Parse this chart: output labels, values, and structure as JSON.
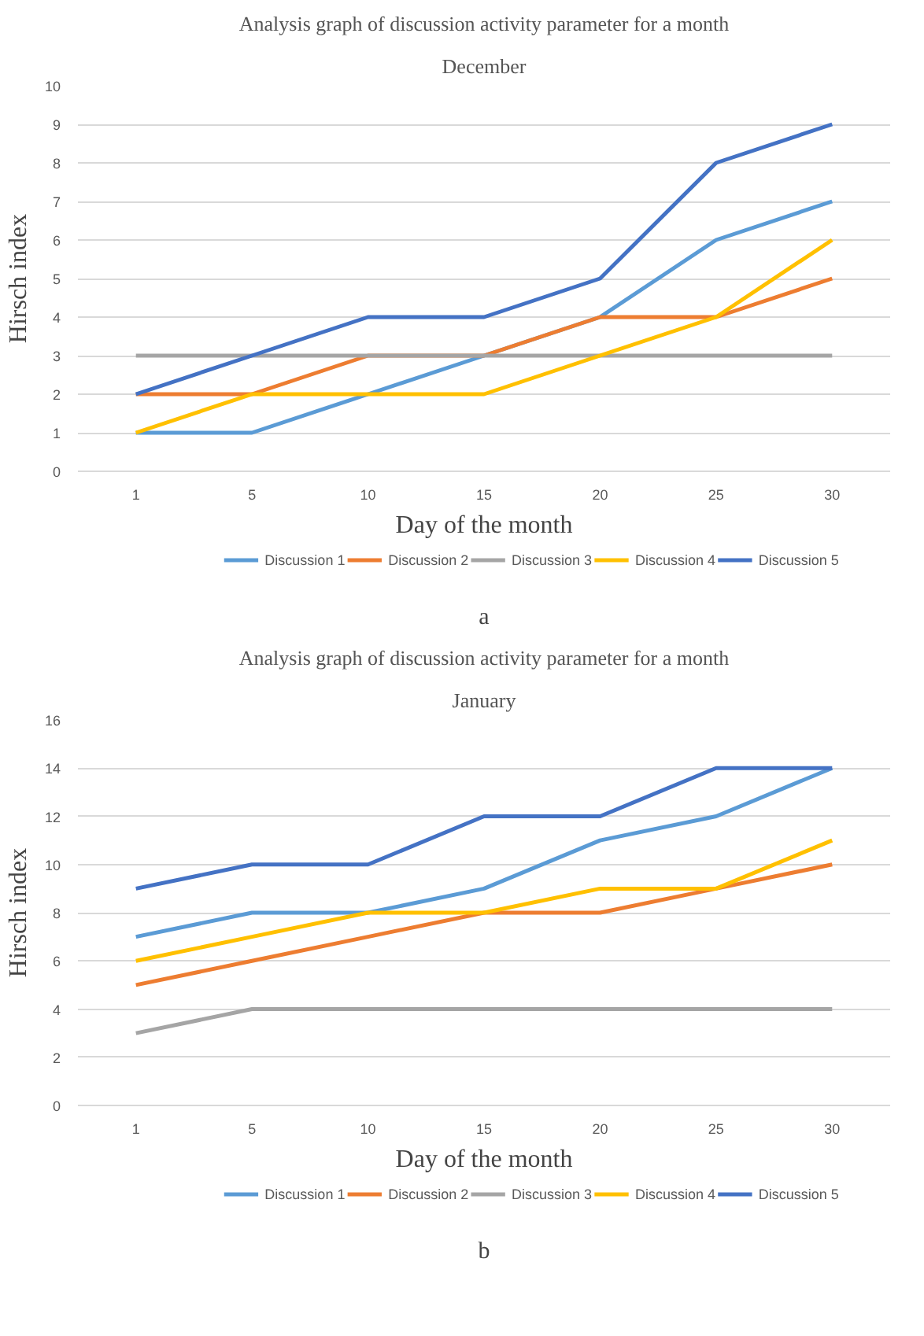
{
  "chart_data": [
    {
      "type": "line",
      "title": "Analysis graph of discussion activity parameter for a month",
      "subtitle": "December",
      "xlabel": "Day of the month",
      "ylabel": "Hirsch index",
      "categories": [
        "1",
        "5",
        "10",
        "15",
        "20",
        "25",
        "30"
      ],
      "ylim": [
        0,
        10
      ],
      "yticks": [
        0,
        1,
        2,
        3,
        4,
        5,
        6,
        7,
        8,
        9,
        10
      ],
      "grid": "y",
      "legend": "bottom",
      "marker": "none",
      "line_style": "solid",
      "annotations": [
        "a"
      ],
      "series": [
        {
          "name": "Discussion 1",
          "color": "#5b9bd5",
          "values": [
            1,
            1,
            2,
            3,
            4,
            6,
            7
          ]
        },
        {
          "name": "Discussion 2",
          "color": "#ed7d31",
          "values": [
            2,
            2,
            3,
            3,
            4,
            4,
            5
          ]
        },
        {
          "name": "Discussion 3",
          "color": "#a5a5a5",
          "values": [
            3,
            3,
            3,
            3,
            3,
            3,
            3
          ]
        },
        {
          "name": "Discussion 4",
          "color": "#ffc000",
          "values": [
            1,
            2,
            2,
            2,
            3,
            4,
            6
          ]
        },
        {
          "name": "Discussion 5",
          "color": "#4472c4",
          "values": [
            2,
            3,
            4,
            4,
            5,
            8,
            9
          ]
        }
      ]
    },
    {
      "type": "line",
      "title": "Analysis graph of discussion activity parameter for a month",
      "subtitle": "January",
      "xlabel": "Day of the month",
      "ylabel": "Hirsch index",
      "categories": [
        "1",
        "5",
        "10",
        "15",
        "20",
        "25",
        "30"
      ],
      "ylim": [
        0,
        16
      ],
      "yticks": [
        0,
        2,
        4,
        6,
        8,
        10,
        12,
        14,
        16
      ],
      "grid": "y",
      "legend": "bottom",
      "marker": "none",
      "line_style": "solid",
      "annotations": [
        "b"
      ],
      "series": [
        {
          "name": "Discussion 1",
          "color": "#5b9bd5",
          "values": [
            7,
            8,
            8,
            9,
            11,
            12,
            14
          ]
        },
        {
          "name": "Discussion 2",
          "color": "#ed7d31",
          "values": [
            5,
            6,
            7,
            8,
            8,
            9,
            10
          ]
        },
        {
          "name": "Discussion 3",
          "color": "#a5a5a5",
          "values": [
            3,
            4,
            4,
            4,
            4,
            4,
            4
          ]
        },
        {
          "name": "Discussion 4",
          "color": "#ffc000",
          "values": [
            6,
            7,
            8,
            8,
            9,
            9,
            11
          ]
        },
        {
          "name": "Discussion 5",
          "color": "#4472c4",
          "values": [
            9,
            10,
            10,
            12,
            12,
            14,
            14
          ]
        }
      ]
    }
  ]
}
